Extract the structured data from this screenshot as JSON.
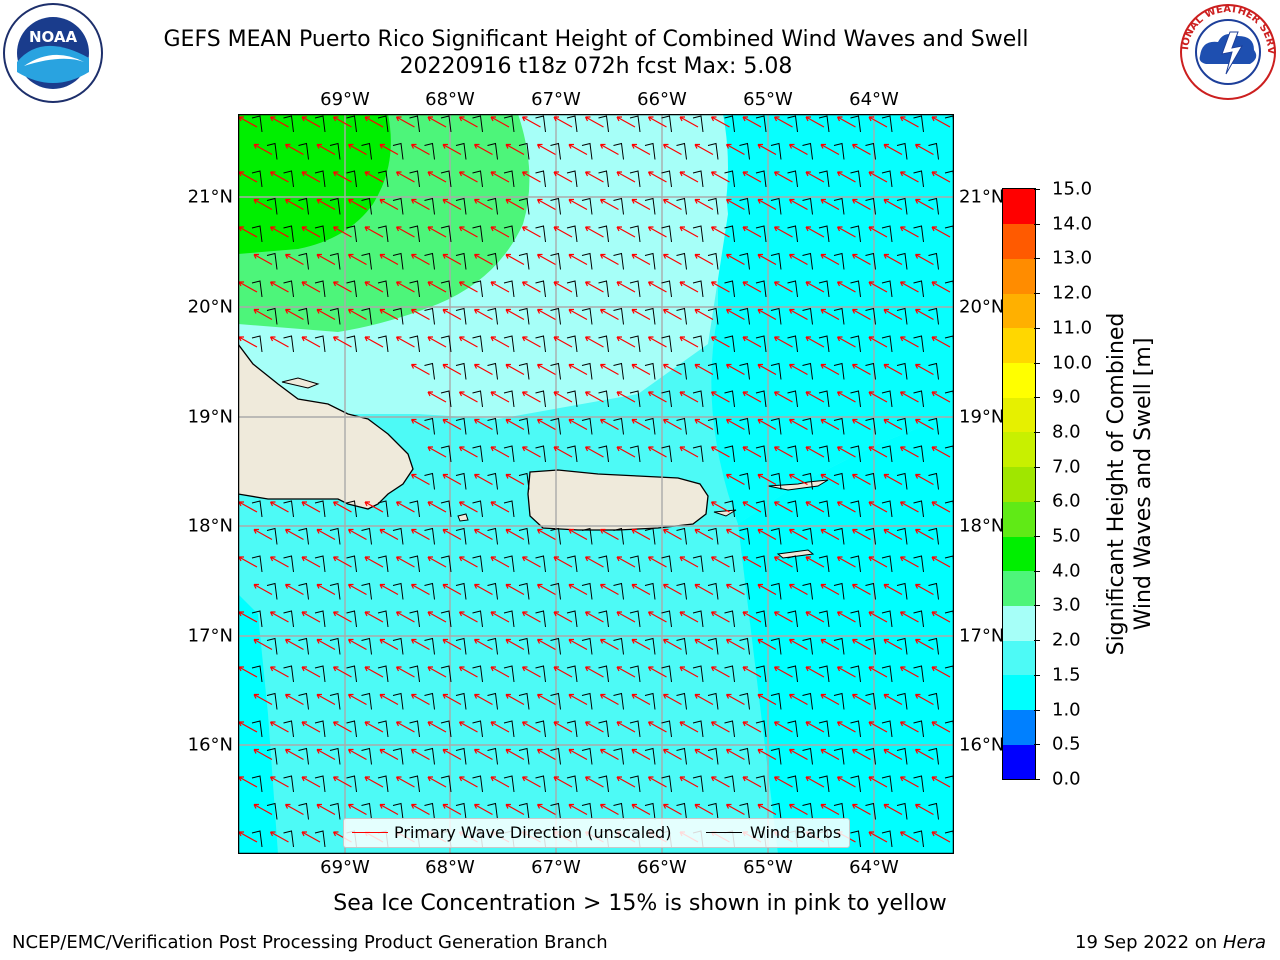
{
  "title": {
    "line1": "GEFS MEAN Puerto Rico Significant Height of Combined Wind Waves and Swell",
    "line2": "20220916 t18z 072h fcst   Max: 5.08"
  },
  "map": {
    "lon_ticks": [
      "69°W",
      "68°W",
      "67°W",
      "66°W",
      "65°W",
      "64°W"
    ],
    "lat_ticks": [
      "21°N",
      "20°N",
      "19°N",
      "18°N",
      "17°N",
      "16°N"
    ],
    "land_color": "#efeadb",
    "ocean_color": "#4dfaf6"
  },
  "legend": {
    "wave_label": "Primary Wave Direction (unscaled)",
    "barb_label": "Wind Barbs",
    "wave_color": "#ff0000",
    "barb_color": "#000000"
  },
  "colorbar": {
    "label_line1": "Significant Height of Combined",
    "label_line2": "Wind Waves and Swell [m]",
    "ticks": [
      "0.0",
      "0.5",
      "1.0",
      "1.5",
      "2.0",
      "3.0",
      "4.0",
      "5.0",
      "6.0",
      "7.0",
      "8.0",
      "9.0",
      "10.0",
      "11.0",
      "12.0",
      "13.0",
      "14.0",
      "15.0"
    ],
    "colors": [
      "#0000ff",
      "#0080ff",
      "#00ffff",
      "#4dfaf6",
      "#a6fff8",
      "#4df57a",
      "#00ef00",
      "#60ea16",
      "#a0e600",
      "#c8f000",
      "#e6f000",
      "#ffff00",
      "#ffd700",
      "#ffb000",
      "#ff8c00",
      "#ff5a00",
      "#ff0000"
    ]
  },
  "logos": {
    "noaa_text": "NOAA",
    "nws_text": "NATIONAL WEATHER SERVICE"
  },
  "note": "Sea Ice Concentration > 15% is shown in pink to yellow",
  "footer": {
    "left": "NCEP/EMC/Verification Post Processing Product Generation Branch",
    "right_prefix": "19 Sep 2022 on ",
    "right_host": "Hera"
  }
}
